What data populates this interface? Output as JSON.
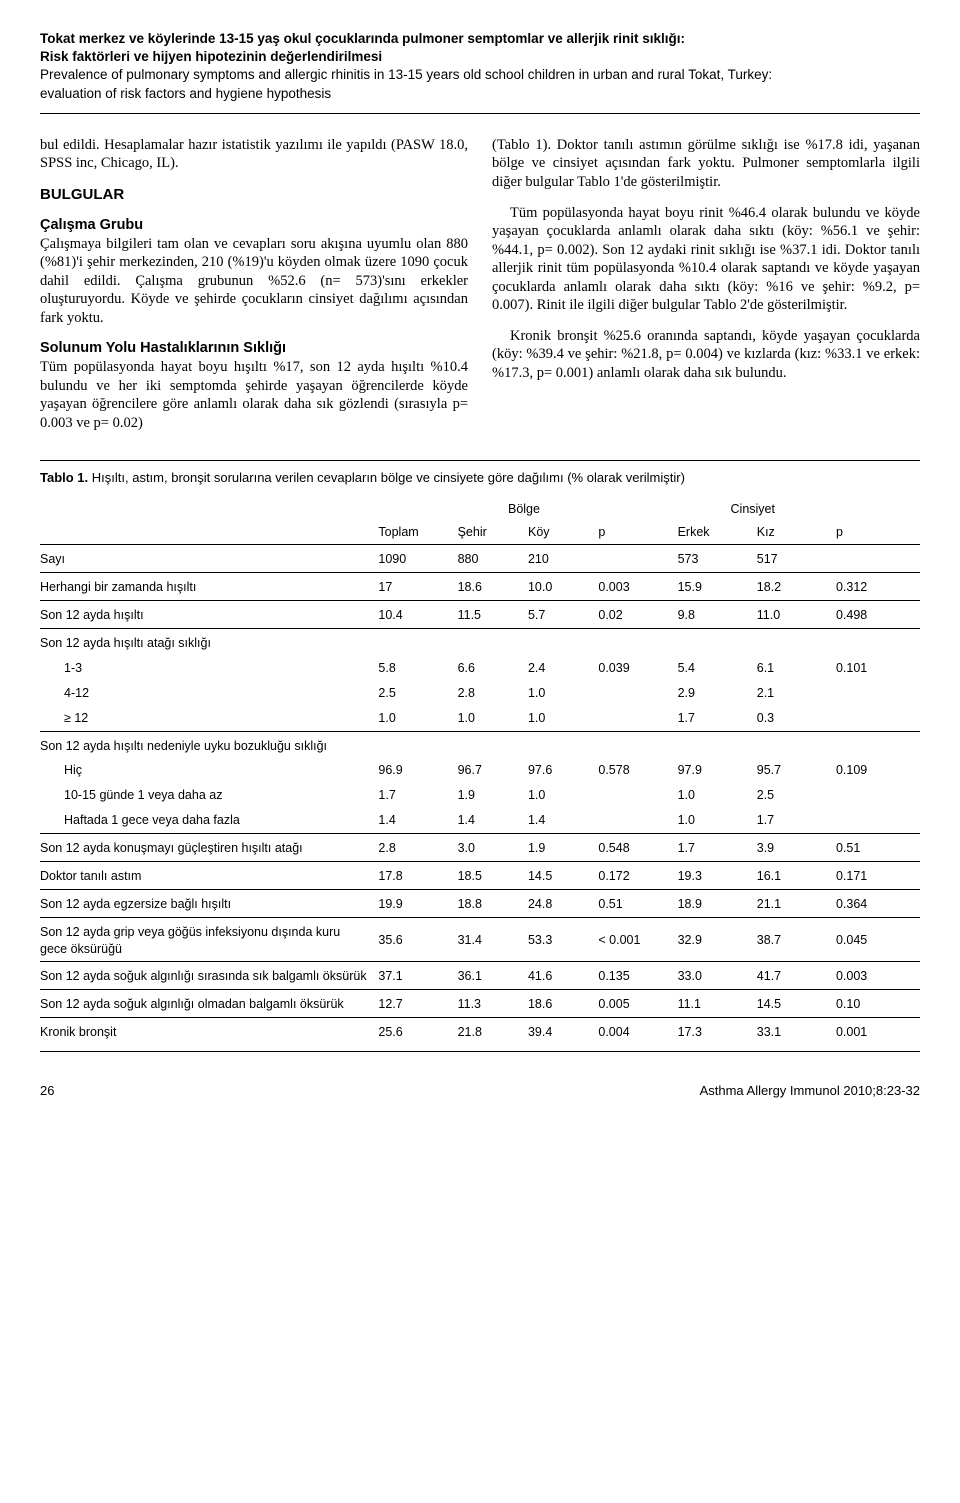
{
  "header": {
    "title_tr_line1": "Tokat merkez ve köylerinde 13-15 yaş okul çocuklarında pulmoner semptomlar ve allerjik rinit sıklığı:",
    "title_tr_line2": "Risk faktörleri ve hijyen hipotezinin değerlendirilmesi",
    "title_en_line1": "Prevalence of pulmonary symptoms and allergic rhinitis in 13-15 years old school children in urban and rural Tokat, Turkey:",
    "title_en_line2": "evaluation of risk factors and hygiene hypothesis"
  },
  "left_col": {
    "p1": "bul edildi. Hesaplamalar hazır istatistik yazılımı ile yapıldı (PASW 18.0, SPSS inc, Chicago, IL).",
    "bulgular": "BULGULAR",
    "calisma_head": "Çalışma Grubu",
    "calisma_body": "Çalışmaya bilgileri tam olan ve cevapları soru akışına uyumlu olan 880 (%81)'i şehir merkezinden, 210 (%19)'u köyden olmak üzere 1090 çocuk dahil edildi. Çalışma grubunun %52.6 (n= 573)'sını erkekler oluşturuyordu. Köyde ve şehirde çocukların cinsiyet dağılımı açısından fark yoktu.",
    "solunum_head": "Solunum Yolu Hastalıklarının Sıklığı",
    "solunum_body": "Tüm popülasyonda hayat boyu hışıltı %17, son 12 ayda hışıltı %10.4 bulundu ve her iki semptomda şehirde yaşayan öğrencilerde köyde yaşayan öğrencilere göre anlamlı olarak daha sık gözlendi (sırasıyla p= 0.003 ve p= 0.02)"
  },
  "right_col": {
    "p1": "(Tablo 1). Doktor tanılı astımın görülme sıklığı ise %17.8 idi, yaşanan bölge ve cinsiyet açısından fark yoktu. Pulmoner semptomlarla ilgili diğer bulgular Tablo 1'de gösterilmiştir.",
    "p2": "Tüm popülasyonda hayat boyu rinit %46.4 olarak bulundu ve köyde yaşayan çocuklarda anlamlı olarak daha sıktı (köy: %56.1 ve şehir: %44.1, p= 0.002). Son 12 aydaki rinit sıklığı ise %37.1 idi. Doktor tanılı allerjik rinit tüm popülasyonda %10.4 olarak saptandı ve köyde yaşayan çocuklarda anlamlı olarak daha sıktı (köy: %16 ve şehir: %9.2, p= 0.007). Rinit ile ilgili diğer bulgular Tablo 2'de gösterilmiştir.",
    "p3": "Kronik bronşit %25.6 oranında saptandı, köyde yaşayan çocuklarda (köy: %39.4 ve şehir: %21.8, p= 0.004) ve kızlarda (kız: %33.1 ve erkek: %17.3, p= 0.001) anlamlı olarak daha sık bulundu."
  },
  "table": {
    "title_num": "Tablo 1.",
    "title_desc": " Hışıltı, astım, bronşit sorularına verilen cevapların bölge ve cinsiyete göre dağılımı (% olarak verilmiştir)",
    "group_bolge": "Bölge",
    "group_cinsiyet": "Cinsiyet",
    "col_toplam": "Toplam",
    "col_sehir": "Şehir",
    "col_koy": "Köy",
    "col_p1": "p",
    "col_erkek": "Erkek",
    "col_kiz": "Kız",
    "col_p2": "p",
    "rows": [
      {
        "label": "Sayı",
        "toplam": "1090",
        "sehir": "880",
        "koy": "210",
        "p1": "",
        "erkek": "573",
        "kiz": "517",
        "p2": "",
        "section": true
      },
      {
        "label": "Herhangi bir zamanda hışıltı",
        "toplam": "17",
        "sehir": "18.6",
        "koy": "10.0",
        "p1": "0.003",
        "p1b": true,
        "erkek": "15.9",
        "kiz": "18.2",
        "p2": "0.312",
        "section": true
      },
      {
        "label": "Son 12 ayda hışıltı",
        "toplam": "10.4",
        "sehir": "11.5",
        "koy": "5.7",
        "p1": "0.02",
        "p1b": true,
        "erkek": "9.8",
        "kiz": "11.0",
        "p2": "0.498",
        "section": true
      },
      {
        "label": "Son 12 ayda hışıltı atağı sıklığı",
        "toplam": "",
        "sehir": "",
        "koy": "",
        "p1": "",
        "erkek": "",
        "kiz": "",
        "p2": "",
        "section": true
      },
      {
        "label": "1-3",
        "indent": true,
        "toplam": "5.8",
        "sehir": "6.6",
        "koy": "2.4",
        "p1": "0.039",
        "p1b": true,
        "erkek": "5.4",
        "kiz": "6.1",
        "p2": "0.101"
      },
      {
        "label": "4-12",
        "indent": true,
        "toplam": "2.5",
        "sehir": "2.8",
        "koy": "1.0",
        "p1": "",
        "erkek": "2.9",
        "kiz": "2.1",
        "p2": ""
      },
      {
        "label": "≥ 12",
        "indent": true,
        "toplam": "1.0",
        "sehir": "1.0",
        "koy": "1.0",
        "p1": "",
        "erkek": "1.7",
        "kiz": "0.3",
        "p2": ""
      },
      {
        "label": "Son 12 ayda hışıltı nedeniyle uyku bozukluğu sıklığı",
        "toplam": "",
        "sehir": "",
        "koy": "",
        "p1": "",
        "erkek": "",
        "kiz": "",
        "p2": "",
        "section": true
      },
      {
        "label": "Hiç",
        "indent": true,
        "toplam": "96.9",
        "sehir": "96.7",
        "koy": "97.6",
        "p1": "0.578",
        "erkek": "97.9",
        "kiz": "95.7",
        "p2": "0.109"
      },
      {
        "label": "10-15 günde 1 veya daha az",
        "indent": true,
        "toplam": "1.7",
        "sehir": "1.9",
        "koy": "1.0",
        "p1": "",
        "erkek": "1.0",
        "kiz": "2.5",
        "p2": ""
      },
      {
        "label": "Haftada 1 gece veya daha fazla",
        "indent": true,
        "toplam": "1.4",
        "sehir": "1.4",
        "koy": "1.4",
        "p1": "",
        "erkek": "1.0",
        "kiz": "1.7",
        "p2": ""
      },
      {
        "label": "Son 12 ayda konuşmayı güçleştiren hışıltı atağı",
        "toplam": "2.8",
        "sehir": "3.0",
        "koy": "1.9",
        "p1": "0.548",
        "erkek": "1.7",
        "kiz": "3.9",
        "p2": "0.51",
        "section": true
      },
      {
        "label": "Doktor tanılı astım",
        "toplam": "17.8",
        "sehir": "18.5",
        "koy": "14.5",
        "p1": "0.172",
        "erkek": "19.3",
        "kiz": "16.1",
        "p2": "0.171",
        "section": true
      },
      {
        "label": "Son 12 ayda egzersize bağlı hışıltı",
        "toplam": "19.9",
        "sehir": "18.8",
        "koy": "24.8",
        "p1": "0.51",
        "erkek": "18.9",
        "kiz": "21.1",
        "p2": "0.364",
        "section": true
      },
      {
        "label": "Son 12 ayda grip veya göğüs infeksiyonu dışında kuru gece öksürüğü",
        "toplam": "35.6",
        "sehir": "31.4",
        "koy": "53.3",
        "p1": "< 0.001",
        "p1b": true,
        "erkek": "32.9",
        "kiz": "38.7",
        "p2": "0.045",
        "p2b": true,
        "section": true
      },
      {
        "label": "Son 12 ayda soğuk algınlığı sırasında sık balgamlı öksürük",
        "toplam": "37.1",
        "sehir": "36.1",
        "koy": "41.6",
        "p1": "0.135",
        "erkek": "33.0",
        "kiz": "41.7",
        "p2": "0.003",
        "p2b": true,
        "section": true
      },
      {
        "label": "Son 12 ayda soğuk algınlığı olmadan balgamlı öksürük",
        "toplam": "12.7",
        "sehir": "11.3",
        "koy": "18.6",
        "p1": "0.005",
        "p1b": true,
        "erkek": "11.1",
        "kiz": "14.5",
        "p2": "0.10",
        "section": true
      },
      {
        "label": "Kronik bronşit",
        "toplam": "25.6",
        "sehir": "21.8",
        "koy": "39.4",
        "p1": "0.004",
        "p1b": true,
        "erkek": "17.3",
        "kiz": "33.1",
        "p2": "0.001",
        "p2b": true,
        "section": true
      }
    ]
  },
  "footer": {
    "page": "26",
    "journal": "Asthma Allergy Immunol 2010;8:23-32"
  }
}
